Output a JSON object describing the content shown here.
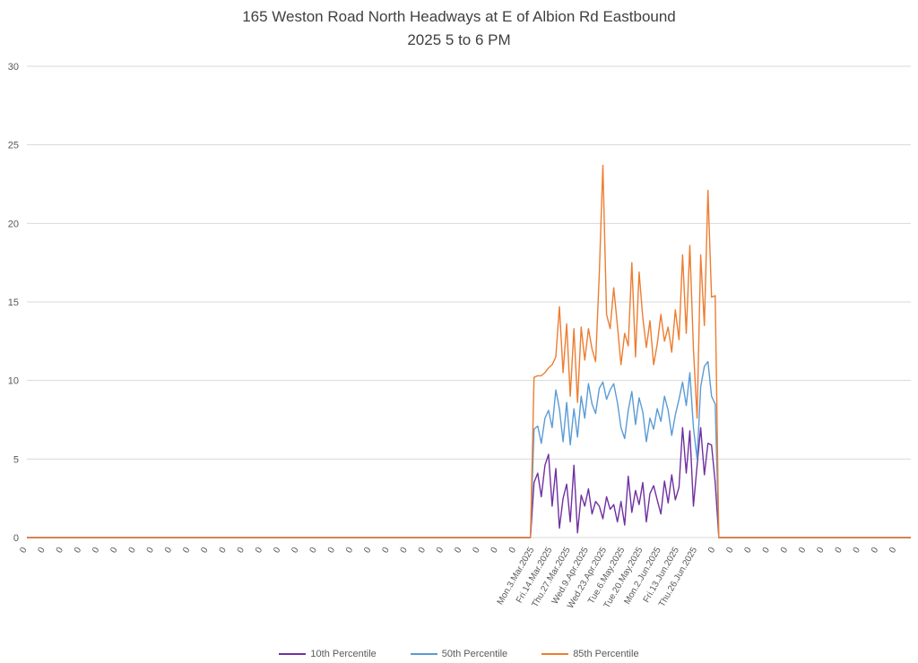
{
  "header": {
    "title_line1": "165 Weston Road North Headways at E of Albion Rd Eastbound",
    "title_line2": "2025 5 to 6 PM"
  },
  "chart_data": {
    "type": "line",
    "title": "165 Weston Road North Headways at E of Albion Rd Eastbound",
    "subtitle": "2025 5 to 6 PM",
    "xlabel": "",
    "ylabel": "",
    "ylim": [
      0,
      30
    ],
    "yticks": [
      0,
      5,
      10,
      15,
      20,
      25,
      30
    ],
    "grid": true,
    "legend_position": "bottom",
    "colors": {
      "grid": "#D9D9D9",
      "axis_text": "#595959",
      "title_text": "#404040",
      "background": "#FFFFFF"
    },
    "points_per_tick": 5,
    "zeros_before": 140,
    "zeros_after": 54,
    "x_tick_labels": [
      "0",
      "0",
      "0",
      "0",
      "0",
      "0",
      "0",
      "0",
      "0",
      "0",
      "0",
      "0",
      "0",
      "0",
      "0",
      "0",
      "0",
      "0",
      "0",
      "0",
      "0",
      "0",
      "0",
      "0",
      "0",
      "0",
      "0",
      "0",
      "Mon.3.Mar.2025",
      "Fri.14.Mar.2025",
      "Thu.27.Mar.2025",
      "Wed.9.Apr.2025",
      "Wed.23.Apr.2025",
      "Tue.6.May.2025",
      "Tue.20.May.2025",
      "Mon.2.Jun.2025",
      "Fri.13.Jun.2025",
      "Thu.26.Jun.2025",
      "0",
      "0",
      "0",
      "0",
      "0",
      "0",
      "0",
      "0",
      "0",
      "0",
      "0"
    ],
    "series": [
      {
        "name": "10th Percentile",
        "color": "#7030A0",
        "active_values": [
          3.5,
          4.1,
          2.6,
          4.6,
          5.3,
          2.0,
          4.4,
          0.6,
          2.5,
          3.4,
          1.0,
          4.6,
          0.3,
          2.7,
          2.0,
          3.1,
          1.5,
          2.3,
          2.0,
          1.2,
          2.6,
          1.8,
          2.1,
          1.0,
          2.3,
          0.8,
          3.9,
          1.6,
          3.0,
          2.1,
          3.5,
          1.0,
          2.8,
          3.3,
          2.4,
          1.5,
          3.6,
          2.2,
          4.0,
          2.4,
          3.2,
          7.0,
          4.1,
          6.8,
          2.0,
          4.6,
          7.0,
          4.0,
          6.0,
          5.9,
          3.5
        ]
      },
      {
        "name": "50th Percentile",
        "color": "#5B9BD5",
        "active_values": [
          6.9,
          7.1,
          6.0,
          7.6,
          8.1,
          7.0,
          9.4,
          8.2,
          6.1,
          8.6,
          5.9,
          8.2,
          6.4,
          9.0,
          7.6,
          9.8,
          8.5,
          7.9,
          9.5,
          9.9,
          8.8,
          9.4,
          9.8,
          8.6,
          7.0,
          6.3,
          8.1,
          9.3,
          7.2,
          8.9,
          8.0,
          6.1,
          7.6,
          6.9,
          8.2,
          7.4,
          9.0,
          8.1,
          6.5,
          7.8,
          8.8,
          9.9,
          8.4,
          10.5,
          7.0,
          5.0,
          9.6,
          10.9,
          11.2,
          9.0,
          8.5
        ]
      },
      {
        "name": "85th Percentile",
        "color": "#ED7D31",
        "active_values": [
          10.2,
          10.3,
          10.3,
          10.5,
          10.8,
          11.0,
          11.5,
          14.7,
          10.5,
          13.6,
          9.0,
          13.3,
          8.6,
          13.4,
          11.3,
          13.3,
          12.0,
          11.2,
          16.8,
          23.7,
          14.2,
          13.3,
          15.9,
          13.5,
          11.0,
          13.0,
          12.2,
          17.5,
          11.5,
          16.9,
          14.0,
          12.1,
          13.8,
          11.0,
          12.3,
          14.2,
          12.5,
          13.4,
          11.8,
          14.5,
          12.6,
          18.0,
          13.0,
          18.6,
          12.0,
          7.6,
          18.0,
          13.5,
          22.1,
          15.3,
          15.4
        ]
      }
    ]
  }
}
